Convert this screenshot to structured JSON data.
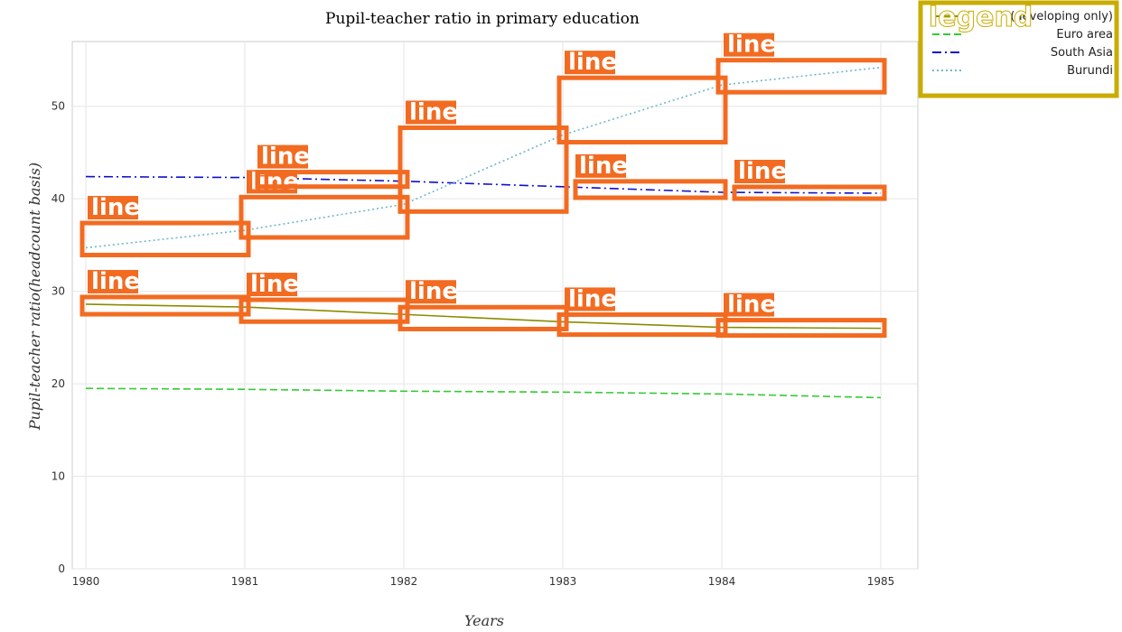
{
  "chart_data": {
    "type": "line",
    "title": "Pupil-teacher ratio in primary education",
    "xlabel": "Years",
    "ylabel": "Pupil-teacher ratio(headcount basis)",
    "x": [
      "1980",
      "1981",
      "1982",
      "1983",
      "1984",
      "1985"
    ],
    "ylim": [
      0,
      57
    ],
    "yticks": [
      "0",
      "10",
      "20",
      "30",
      "40",
      "50"
    ],
    "grid": true,
    "legend": {
      "title": "legend",
      "position": "top-right",
      "entries": [
        "(developing only)",
        "Euro area",
        "South Asia",
        "Burundi"
      ]
    },
    "annotation_label": "line",
    "series": [
      {
        "name": "(developing only)",
        "color": "#8b8b00",
        "dash": "solid",
        "values": [
          28.6,
          28.3,
          27.5,
          26.7,
          26.1,
          26.0
        ]
      },
      {
        "name": "Euro area",
        "color": "#33cc33",
        "dash": "dashed",
        "values": [
          19.5,
          19.4,
          19.2,
          19.1,
          18.9,
          18.5
        ]
      },
      {
        "name": "South Asia",
        "color": "#1010cc",
        "dash": "dash-dot",
        "values": [
          42.4,
          42.3,
          41.9,
          41.3,
          40.7,
          40.6
        ]
      },
      {
        "name": "Burundi",
        "color": "#6fb8c8",
        "dash": "dotted",
        "values": [
          34.7,
          36.6,
          39.4,
          46.9,
          52.3,
          54.2
        ]
      }
    ]
  }
}
